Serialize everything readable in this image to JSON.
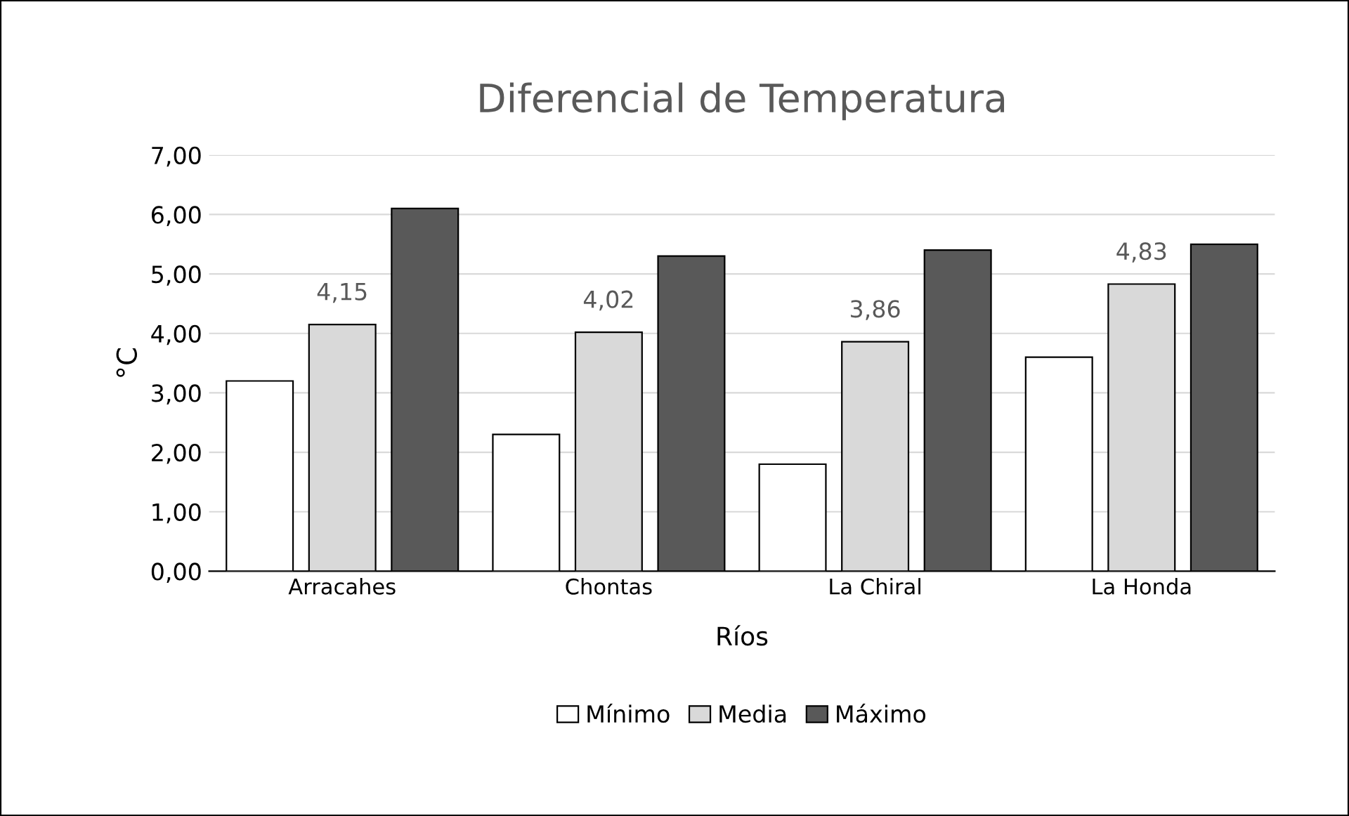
{
  "chart_data": {
    "type": "bar",
    "title": "Diferencial de Temperatura",
    "xlabel": "Ríos",
    "ylabel": "°C",
    "categories": [
      "Arracahes",
      "Chontas",
      "La Chiral",
      "La Honda"
    ],
    "series": [
      {
        "name": "Mínimo",
        "color": "#ffffff",
        "values": [
          3.2,
          2.3,
          1.8,
          3.6
        ]
      },
      {
        "name": "Media",
        "color": "#d9d9d9",
        "values": [
          4.15,
          4.02,
          3.86,
          4.83
        ],
        "value_labels": [
          "4,15",
          "4,02",
          "3,86",
          "4,83"
        ]
      },
      {
        "name": "Máximo",
        "color": "#595959",
        "values": [
          6.1,
          5.3,
          5.4,
          5.5
        ]
      }
    ],
    "ylim": [
      0,
      7
    ],
    "yticks": [
      {
        "value": 0,
        "label": "0,00"
      },
      {
        "value": 1,
        "label": "1,00"
      },
      {
        "value": 2,
        "label": "2,00"
      },
      {
        "value": 3,
        "label": "3,00"
      },
      {
        "value": 4,
        "label": "4,00"
      },
      {
        "value": 5,
        "label": "5,00"
      },
      {
        "value": 6,
        "label": "6,00"
      },
      {
        "value": 7,
        "label": "7,00"
      }
    ],
    "grid": "y",
    "legend": "bottom"
  }
}
